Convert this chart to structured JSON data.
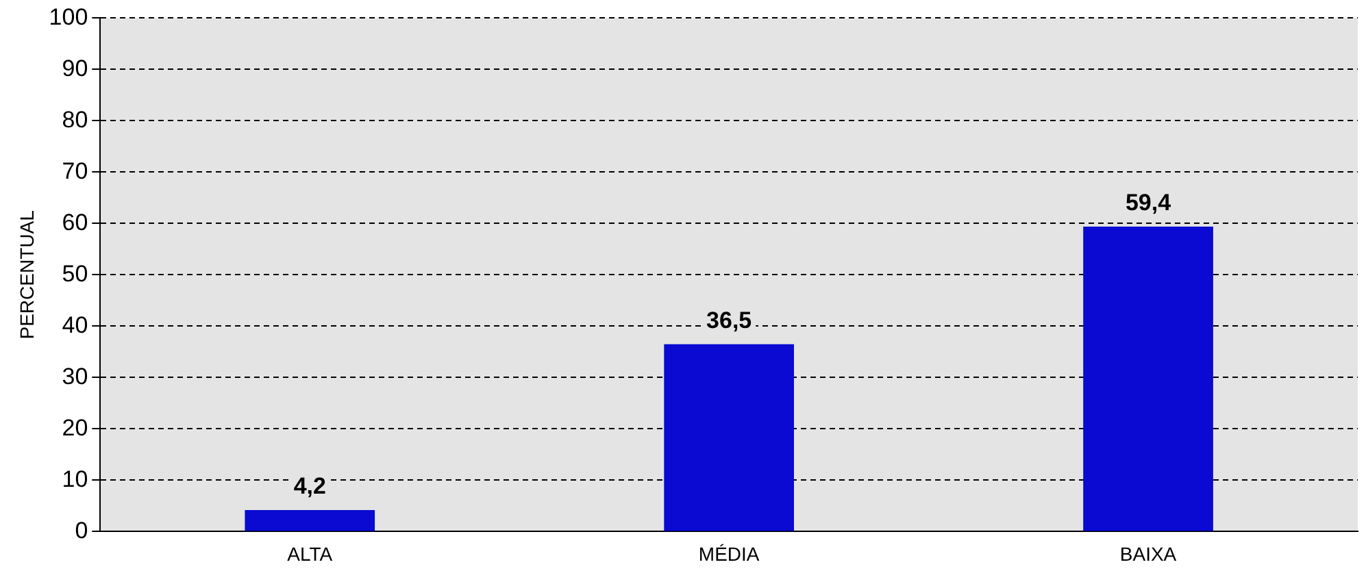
{
  "chart_data": {
    "type": "bar",
    "ylabel": "PERCENTUAL",
    "categories": [
      "ALTA",
      "MÉDIA",
      "BAIXA"
    ],
    "values": [
      4.2,
      36.5,
      59.4
    ],
    "color": "#0a0ad2",
    "ylim": [
      0,
      100
    ],
    "yticks": [
      0,
      10,
      20,
      30,
      40,
      50,
      60,
      70,
      80,
      90,
      100
    ],
    "value_labels": [
      "4,2",
      "36,5",
      "59,4"
    ],
    "grid": "y",
    "legend": false
  }
}
